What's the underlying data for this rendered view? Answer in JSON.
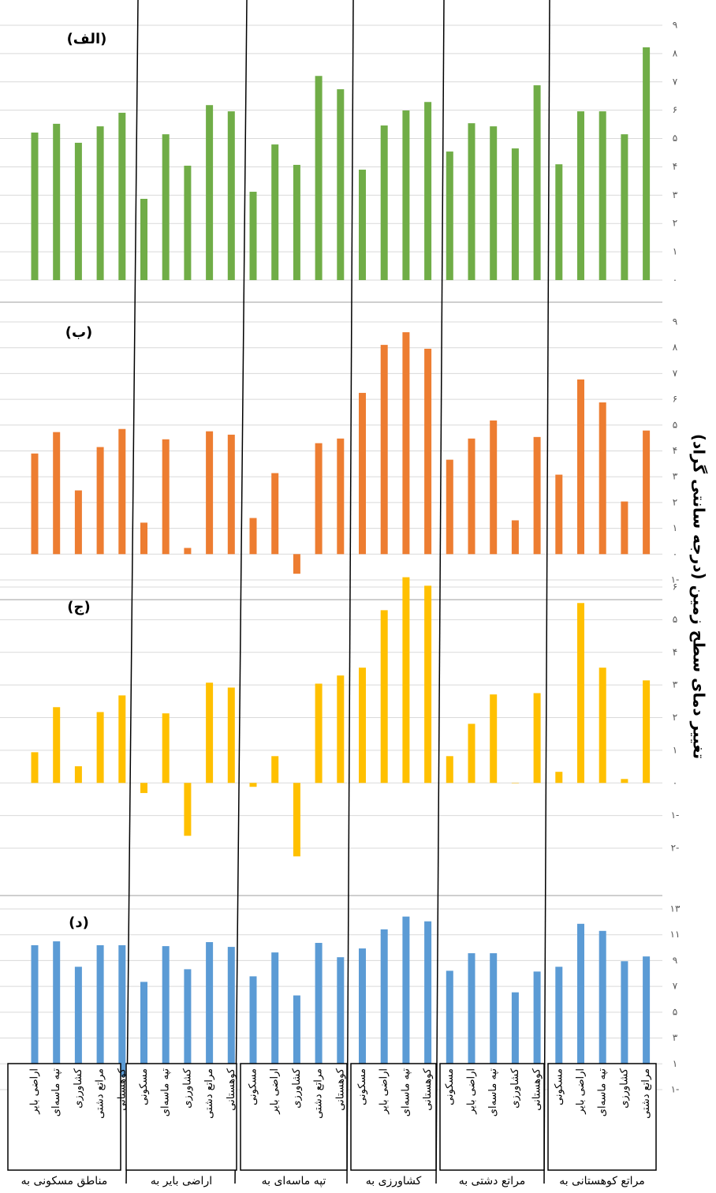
{
  "y_label": "تغییر دمای سطح زمین (درجه سانتی گراد)",
  "x_axis": {
    "groups": [
      {
        "name": "مناطق مسکونی به",
        "categories": [
          "اراضی بایر",
          "تپه ماسه‌ای",
          "کشاورزی",
          "مراتع دشتی",
          "کوهستانی"
        ]
      },
      {
        "name": "اراضی بایر به",
        "categories": [
          "مسکونی",
          "تپه ماسه‌ای",
          "کشاورزی",
          "مراتع دشتی",
          "کوهستانی"
        ]
      },
      {
        "name": "تپه ماسه‌ای به",
        "categories": [
          "مسکونی",
          "اراضی بایر",
          "کشاورزی",
          "مراتع دشتی",
          "کوهستانی"
        ]
      },
      {
        "name": "کشاورزی به",
        "categories": [
          "مسکونی",
          "اراضی بایر",
          "تپه ماسه‌ای",
          "کوهستانی"
        ]
      },
      {
        "name": "مراتع دشتی به",
        "categories": [
          "مسکونی",
          "اراضی بایر",
          "تپه ماسه‌ای",
          "کشاورزی",
          "کوهستانی"
        ]
      },
      {
        "name": "مراتع کوهستانی به",
        "categories": [
          "مسکونی",
          "اراضی بایر",
          "تپه ماسه‌ای",
          "کشاورزی",
          "مراتع دشتی"
        ]
      }
    ]
  },
  "chart_data": [
    {
      "type": "bar",
      "title": "(الف)",
      "color": "#70ad47",
      "grid": true,
      "values": [
        [
          5.21,
          5.52,
          4.85,
          5.43,
          5.91
        ],
        [
          2.87,
          5.15,
          4.04,
          6.18,
          5.96
        ],
        [
          3.12,
          4.79,
          4.07,
          7.21,
          6.74
        ],
        [
          3.9,
          5.46,
          5.99,
          6.29
        ],
        [
          4.54,
          5.54,
          5.43,
          4.65,
          6.88
        ],
        [
          4.09,
          5.96,
          5.96,
          5.15,
          8.22
        ]
      ],
      "ylim": [
        0,
        9
      ],
      "yticks": [
        {
          "value": 0,
          "label": "۰"
        },
        {
          "value": 1,
          "label": "۱"
        },
        {
          "value": 2,
          "label": "۲"
        },
        {
          "value": 3,
          "label": "۳"
        },
        {
          "value": 4,
          "label": "۴"
        },
        {
          "value": 5,
          "label": "۵"
        },
        {
          "value": 6,
          "label": "۶"
        },
        {
          "value": 7,
          "label": "۷"
        },
        {
          "value": 8,
          "label": "۸"
        },
        {
          "value": 9,
          "label": "۹"
        }
      ]
    },
    {
      "type": "bar",
      "title": "(ب)",
      "color": "#ed7d31",
      "grid": true,
      "values": [
        [
          3.9,
          4.73,
          2.47,
          4.15,
          4.85
        ],
        [
          1.22,
          4.45,
          0.24,
          4.76,
          4.63
        ],
        [
          1.4,
          3.14,
          -0.76,
          4.3,
          4.48
        ],
        [
          6.25,
          8.11,
          8.6,
          7.96
        ],
        [
          3.66,
          4.48,
          5.18,
          1.31,
          4.54
        ],
        [
          3.08,
          6.77,
          5.88,
          2.04,
          4.79
        ]
      ],
      "ylim": [
        -1,
        9
      ],
      "yticks": [
        {
          "value": -1,
          "label": "۱-"
        },
        {
          "value": 0,
          "label": "۰"
        },
        {
          "value": 1,
          "label": "۱"
        },
        {
          "value": 2,
          "label": "۲"
        },
        {
          "value": 3,
          "label": "۳"
        },
        {
          "value": 4,
          "label": "۴"
        },
        {
          "value": 5,
          "label": "۵"
        },
        {
          "value": 6,
          "label": "۶"
        },
        {
          "value": 7,
          "label": "۷"
        },
        {
          "value": 8,
          "label": "۸"
        },
        {
          "value": 9,
          "label": "۹"
        }
      ]
    },
    {
      "type": "bar",
      "title": "(ج)",
      "color": "#ffc000",
      "grid": true,
      "values": [
        [
          0.94,
          2.32,
          0.51,
          2.17,
          2.68
        ],
        [
          -0.31,
          2.13,
          -1.62,
          3.07,
          2.92
        ],
        [
          -0.12,
          0.82,
          -2.25,
          3.04,
          3.29
        ],
        [
          3.53,
          5.29,
          6.3,
          6.04
        ],
        [
          0.82,
          1.81,
          2.71,
          0,
          2.75
        ],
        [
          0.34,
          5.51,
          3.53,
          0.12,
          3.14
        ]
      ],
      "ylim": [
        -2,
        6
      ],
      "yticks": [
        {
          "value": -2,
          "label": "۲-"
        },
        {
          "value": -1,
          "label": "۱-"
        },
        {
          "value": 0,
          "label": "۰"
        },
        {
          "value": 1,
          "label": "۱"
        },
        {
          "value": 2,
          "label": "۲"
        },
        {
          "value": 3,
          "label": "۳"
        },
        {
          "value": 4,
          "label": "۴"
        },
        {
          "value": 5,
          "label": "۵"
        },
        {
          "value": 6,
          "label": "۶"
        }
      ]
    },
    {
      "type": "bar",
      "title": "(د)",
      "color": "#5b9bd5",
      "grid": true,
      "values": [
        [
          10.19,
          10.49,
          8.52,
          10.19,
          10.19
        ],
        [
          7.35,
          10.12,
          8.33,
          10.43,
          10.06
        ],
        [
          7.78,
          9.63,
          6.3,
          10.37,
          9.26
        ],
        [
          9.94,
          11.42,
          12.41,
          12.04
        ],
        [
          8.21,
          9.57,
          9.57,
          6.54,
          8.15
        ],
        [
          8.52,
          11.85,
          11.3,
          8.95,
          9.32
        ]
      ],
      "ylim": [
        -1,
        13
      ],
      "yticks": [
        {
          "value": -1,
          "label": "۱-"
        },
        {
          "value": 1,
          "label": "۱"
        },
        {
          "value": 3,
          "label": "۳"
        },
        {
          "value": 5,
          "label": "۵"
        },
        {
          "value": 7,
          "label": "۷"
        },
        {
          "value": 9,
          "label": "۹"
        },
        {
          "value": 11,
          "label": "۱۱"
        },
        {
          "value": 13,
          "label": "۱۳"
        }
      ]
    }
  ]
}
